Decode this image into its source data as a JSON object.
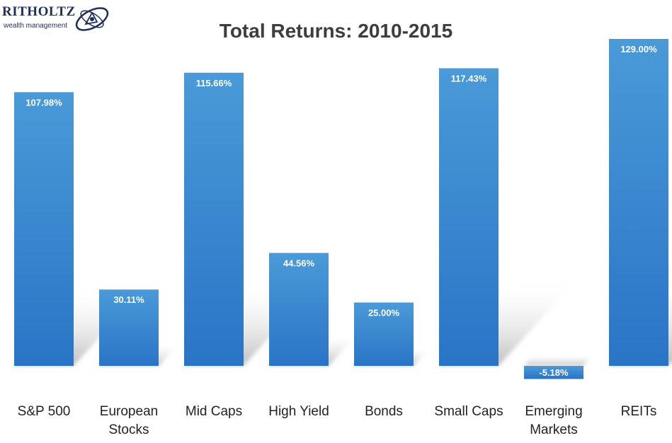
{
  "logo": {
    "name": "RITHOLTZ",
    "subtitle": "wealth management"
  },
  "chart_data": {
    "type": "bar",
    "title": "Total Returns: 2010-2015",
    "xlabel": "",
    "ylabel": "",
    "categories": [
      "S&P 500",
      "European Stocks",
      "Mid Caps",
      "High Yield",
      "Bonds",
      "Small Caps",
      "Emerging Markets",
      "REITs"
    ],
    "category_lines": [
      [
        "S&P 500"
      ],
      [
        "European",
        "Stocks"
      ],
      [
        "Mid Caps"
      ],
      [
        "High Yield"
      ],
      [
        "Bonds"
      ],
      [
        "Small Caps"
      ],
      [
        "Emerging",
        "Markets"
      ],
      [
        "REITs"
      ]
    ],
    "values": [
      107.98,
      30.11,
      115.66,
      44.56,
      25.0,
      117.43,
      -5.18,
      129.0
    ],
    "value_labels": [
      "107.98%",
      "30.11%",
      "115.66%",
      "44.56%",
      "25.00%",
      "117.43%",
      "-5.18%",
      "129.00%"
    ],
    "ylim": [
      -5.18,
      129.0
    ],
    "grid": false,
    "legend": "none",
    "bar_color": "#3a88d2",
    "bar_color_light": "#4a9ad8",
    "bar_color_dark": "#2a74c6"
  }
}
